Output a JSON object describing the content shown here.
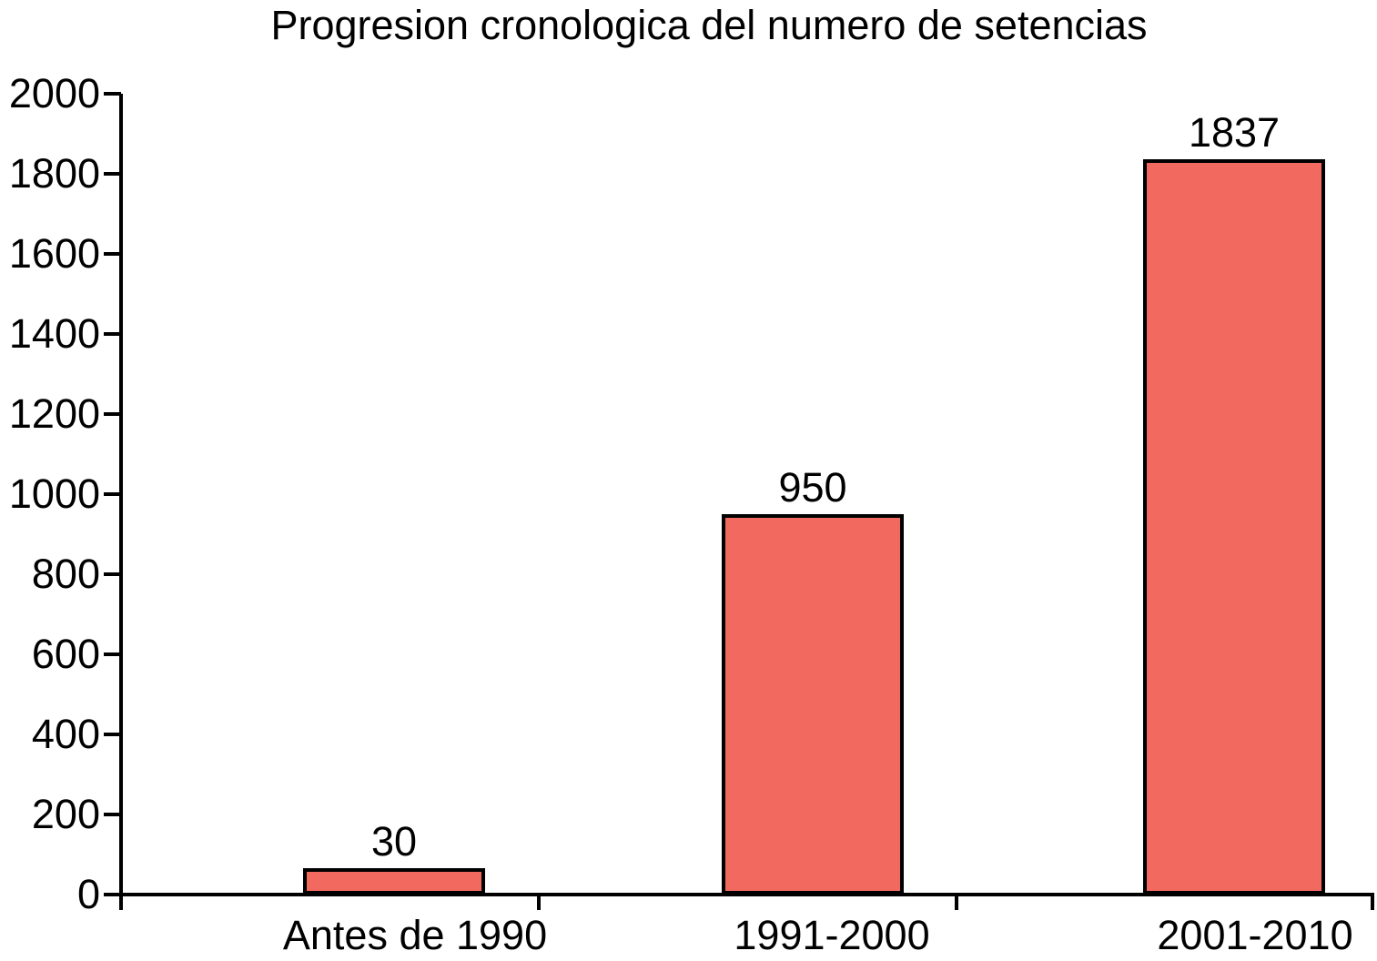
{
  "chart_data": {
    "type": "bar",
    "title": "Progresion cronologica del numero de setencias",
    "categories": [
      "Antes de 1990",
      "1991-2000",
      "2001-2010"
    ],
    "values": [
      30,
      950,
      1837
    ],
    "bar_value_labels": [
      "30",
      "950",
      "1837"
    ],
    "xlabel": "",
    "ylabel": "",
    "ylim": [
      0,
      2000
    ],
    "yticks": [
      0,
      200,
      400,
      600,
      800,
      1000,
      1200,
      1400,
      1600,
      1800,
      2000
    ],
    "ytick_labels": [
      "0",
      "200",
      "400",
      "600",
      "800",
      "1000",
      "1200",
      "1400",
      "1600",
      "1800",
      "2000"
    ],
    "grid": false,
    "legend_position": "none",
    "colors": {
      "bar_fill": "#F1695F",
      "bar_border": "#000000",
      "axis": "#000000",
      "text": "#000000",
      "background": "#FFFFFF"
    }
  }
}
